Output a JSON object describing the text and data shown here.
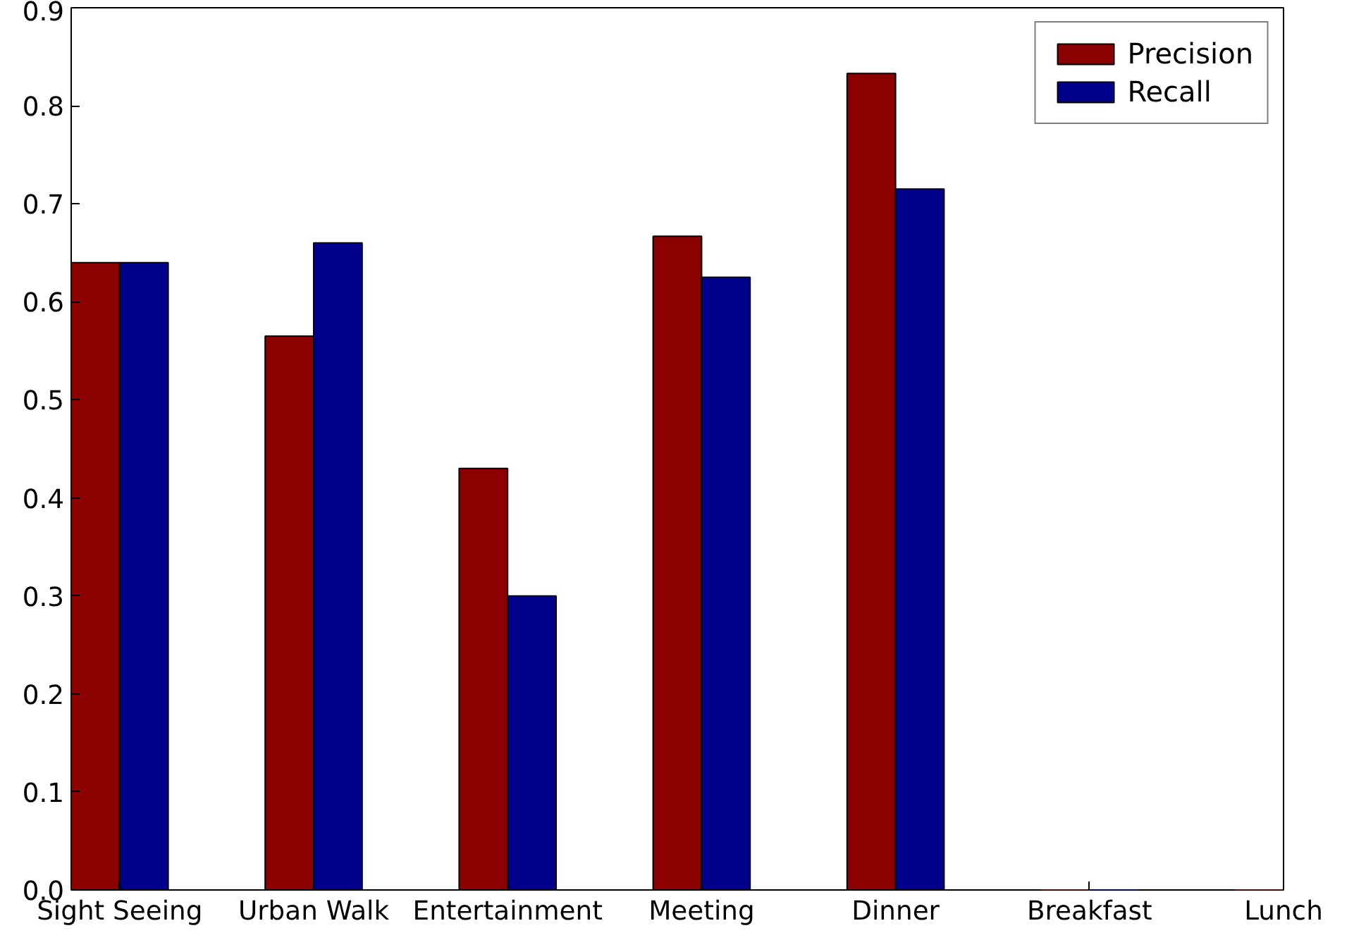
{
  "chart_data": {
    "type": "bar",
    "categories": [
      "Sight Seeing",
      "Urban Walk",
      "Entertainment",
      "Meeting",
      "Dinner",
      "Breakfast",
      "Lunch"
    ],
    "series": [
      {
        "name": "Precision",
        "color": "#8b0000",
        "values": [
          0.64,
          0.565,
          0.43,
          0.667,
          0.833,
          0,
          0
        ]
      },
      {
        "name": "Recall",
        "color": "#00008b",
        "values": [
          0.64,
          0.66,
          0.3,
          0.625,
          0.715,
          0,
          null
        ]
      }
    ],
    "ylim": [
      0,
      0.9
    ],
    "yticks": [
      {
        "value": 0,
        "label": "0.0"
      },
      0.1,
      0.2,
      0.3,
      0.4,
      0.5,
      0.6,
      0.7,
      0.8,
      0.9
    ],
    "grid": false,
    "legend": "top right"
  }
}
